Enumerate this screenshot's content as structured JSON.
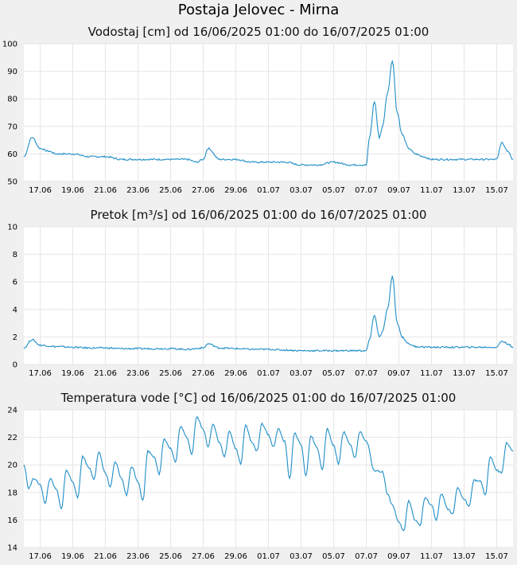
{
  "page_title": "Postaja Jelovec - Mirna",
  "line_color": "#1f8ec7",
  "chart_data": [
    {
      "type": "line",
      "title": "Vodostaj [cm] od 16/06/2025 01:00 do 16/07/2025 01:00",
      "xlim": [
        "2025-06-16",
        "2025-07-16"
      ],
      "xticks": [
        "17.06",
        "19.06",
        "21.06",
        "23.06",
        "25.06",
        "27.06",
        "29.06",
        "01.07",
        "03.07",
        "05.07",
        "07.07",
        "09.07",
        "11.07",
        "13.07",
        "15.07"
      ],
      "ylim": [
        50,
        100
      ],
      "yticks": [
        50,
        60,
        70,
        80,
        90,
        100
      ],
      "grid": true,
      "series": [
        {
          "x": [
            "2025-06-16",
            "2025-06-16.5",
            "2025-06-17",
            "2025-06-17.5",
            "2025-06-18",
            "2025-06-19",
            "2025-06-20",
            "2025-06-21",
            "2025-06-22",
            "2025-06-23",
            "2025-06-24",
            "2025-06-25",
            "2025-06-26",
            "2025-06-26.6",
            "2025-06-27",
            "2025-06-27.3",
            "2025-06-28",
            "2025-06-29",
            "2025-06-30",
            "2025-07-01",
            "2025-07-02",
            "2025-07-03",
            "2025-07-04",
            "2025-07-05",
            "2025-07-06",
            "2025-07-07",
            "2025-07-07.2",
            "2025-07-07.5",
            "2025-07-07.8",
            "2025-07-08",
            "2025-07-08.3",
            "2025-07-08.6",
            "2025-07-08.9",
            "2025-07-09.2",
            "2025-07-09.6",
            "2025-07-10",
            "2025-07-10.5",
            "2025-07-11",
            "2025-07-12",
            "2025-07-13",
            "2025-07-14",
            "2025-07-15",
            "2025-07-15.3",
            "2025-07-15.7",
            "2025-07-16"
          ],
          "y": [
            59,
            66,
            62,
            61,
            60,
            60,
            59,
            59,
            58,
            58,
            58,
            58,
            58,
            57,
            58,
            62,
            58,
            58,
            57,
            57,
            57,
            56,
            56,
            57,
            56,
            56,
            66,
            79,
            66,
            70,
            82,
            94,
            75,
            67,
            62,
            60,
            59,
            58,
            58,
            58,
            58,
            58,
            64,
            61,
            58
          ]
        }
      ]
    },
    {
      "type": "line",
      "title": "Pretok [m³/s] od 16/06/2025 01:00 do 16/07/2025 01:00",
      "xlim": [
        "2025-06-16",
        "2025-07-16"
      ],
      "xticks": [
        "17.06",
        "19.06",
        "21.06",
        "23.06",
        "25.06",
        "27.06",
        "29.06",
        "01.07",
        "03.07",
        "05.07",
        "07.07",
        "09.07",
        "11.07",
        "13.07",
        "15.07"
      ],
      "ylim": [
        0,
        10
      ],
      "yticks": [
        0,
        2,
        4,
        6,
        8,
        10
      ],
      "grid": true,
      "series": [
        {
          "x": [
            "2025-06-16",
            "2025-06-16.5",
            "2025-06-17",
            "2025-06-18",
            "2025-06-19",
            "2025-06-20",
            "2025-06-21",
            "2025-06-22",
            "2025-06-23",
            "2025-06-24",
            "2025-06-25",
            "2025-06-26",
            "2025-06-27",
            "2025-06-27.3",
            "2025-06-28",
            "2025-06-29",
            "2025-06-30",
            "2025-07-01",
            "2025-07-02",
            "2025-07-03",
            "2025-07-04",
            "2025-07-05",
            "2025-07-06",
            "2025-07-07",
            "2025-07-07.2",
            "2025-07-07.5",
            "2025-07-07.8",
            "2025-07-08",
            "2025-07-08.3",
            "2025-07-08.6",
            "2025-07-08.9",
            "2025-07-09.2",
            "2025-07-09.6",
            "2025-07-10",
            "2025-07-11",
            "2025-07-12",
            "2025-07-13",
            "2025-07-14",
            "2025-07-15",
            "2025-07-15.3",
            "2025-07-15.7",
            "2025-07-16"
          ],
          "y": [
            1.2,
            1.8,
            1.4,
            1.3,
            1.25,
            1.2,
            1.2,
            1.15,
            1.15,
            1.15,
            1.15,
            1.1,
            1.2,
            1.5,
            1.2,
            1.15,
            1.1,
            1.1,
            1.05,
            1.0,
            1.0,
            1.0,
            1.0,
            1.0,
            1.8,
            3.6,
            2.0,
            2.4,
            4.0,
            6.4,
            3.0,
            2.0,
            1.5,
            1.3,
            1.25,
            1.25,
            1.25,
            1.25,
            1.25,
            1.7,
            1.5,
            1.2
          ]
        }
      ]
    },
    {
      "type": "line",
      "title": "Temperatura vode [°C] od 16/06/2025 01:00 do 16/07/2025 01:00",
      "xlim": [
        "2025-06-16",
        "2025-07-16"
      ],
      "xticks": [
        "17.06",
        "19.06",
        "21.06",
        "23.06",
        "25.06",
        "27.06",
        "29.06",
        "01.07",
        "03.07",
        "05.07",
        "07.07",
        "09.07",
        "11.07",
        "13.07",
        "15.07"
      ],
      "ylim": [
        14,
        24
      ],
      "yticks": [
        14,
        16,
        18,
        20,
        22,
        24
      ],
      "grid": true,
      "series": [
        {
          "x": [
            "2025-06-16",
            "2025-06-16.3",
            "2025-06-16.6",
            "2025-06-17",
            "2025-06-17.3",
            "2025-06-17.6",
            "2025-06-18",
            "2025-06-18.3",
            "2025-06-18.6",
            "2025-06-19",
            "2025-06-19.3",
            "2025-06-19.6",
            "2025-06-20",
            "2025-06-20.3",
            "2025-06-20.6",
            "2025-06-21",
            "2025-06-21.3",
            "2025-06-21.6",
            "2025-06-22",
            "2025-06-22.3",
            "2025-06-22.6",
            "2025-06-23",
            "2025-06-23.3",
            "2025-06-23.6",
            "2025-06-24",
            "2025-06-24.3",
            "2025-06-24.6",
            "2025-06-25",
            "2025-06-25.3",
            "2025-06-25.6",
            "2025-06-26",
            "2025-06-26.3",
            "2025-06-26.6",
            "2025-06-27",
            "2025-06-27.3",
            "2025-06-27.6",
            "2025-06-28",
            "2025-06-28.3",
            "2025-06-28.6",
            "2025-06-29",
            "2025-06-29.3",
            "2025-06-29.6",
            "2025-06-30",
            "2025-06-30.3",
            "2025-06-30.6",
            "2025-07-01",
            "2025-07-01.3",
            "2025-07-01.6",
            "2025-07-02",
            "2025-07-02.3",
            "2025-07-02.6",
            "2025-07-03",
            "2025-07-03.3",
            "2025-07-03.6",
            "2025-07-04",
            "2025-07-04.3",
            "2025-07-04.6",
            "2025-07-05",
            "2025-07-05.3",
            "2025-07-05.6",
            "2025-07-06",
            "2025-07-06.3",
            "2025-07-06.6",
            "2025-07-07",
            "2025-07-07.5",
            "2025-07-08",
            "2025-07-08.3",
            "2025-07-08.6",
            "2025-07-09",
            "2025-07-09.3",
            "2025-07-09.6",
            "2025-07-10",
            "2025-07-10.3",
            "2025-07-10.6",
            "2025-07-11",
            "2025-07-11.3",
            "2025-07-11.6",
            "2025-07-12",
            "2025-07-12.3",
            "2025-07-12.6",
            "2025-07-13",
            "2025-07-13.3",
            "2025-07-13.6",
            "2025-07-14",
            "2025-07-14.3",
            "2025-07-14.6",
            "2025-07-15",
            "2025-07-15.3",
            "2025-07-15.6",
            "2025-07-16"
          ],
          "y": [
            20,
            18.3,
            19,
            18.6,
            17.2,
            19,
            18.2,
            16.8,
            19.6,
            18.8,
            17.6,
            20.6,
            19.8,
            19,
            20.9,
            19.4,
            18.4,
            20.2,
            19,
            17.8,
            19.9,
            18.8,
            17.4,
            21,
            20.6,
            19.3,
            21.9,
            21.2,
            20.2,
            22.8,
            22,
            20.8,
            23.5,
            22.6,
            21.3,
            23,
            21.6,
            20.6,
            22.4,
            21.2,
            20.1,
            22.9,
            21.6,
            21,
            23,
            22.2,
            21.3,
            22.6,
            21.7,
            19,
            22.3,
            21.5,
            19.2,
            22.1,
            21.2,
            19.6,
            22.6,
            21.4,
            20.1,
            22.4,
            21.5,
            20.5,
            22.4,
            21.7,
            19.6,
            19.5,
            17.9,
            17.1,
            15.8,
            15.2,
            17.4,
            16,
            15.6,
            17.6,
            17.1,
            16,
            17.9,
            16.8,
            16.4,
            18.3,
            17.5,
            17,
            18.9,
            18.8,
            17.8,
            20.6,
            19.6,
            19.4,
            21.6,
            21
          ]
        }
      ]
    }
  ]
}
